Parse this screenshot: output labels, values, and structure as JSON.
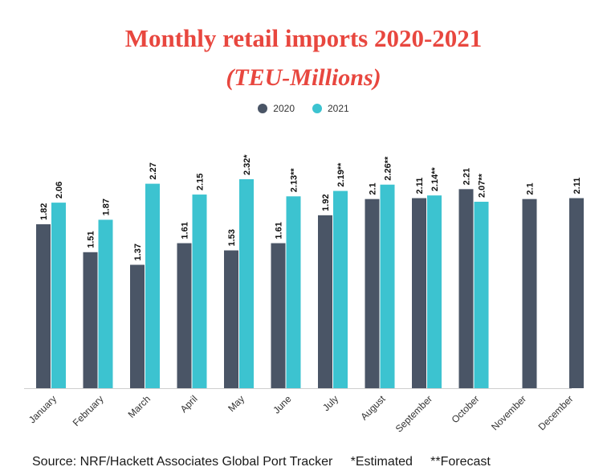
{
  "title": "Monthly retail imports 2020-2021",
  "subtitle": "(TEU-Millions)",
  "source": "Source: NRF/Hackett Associates Global Port Tracker     *Estimated     **Forecast",
  "colors": {
    "s2020": "#4a5566",
    "s2021": "#3cc3d0",
    "title": "#e8473f"
  },
  "chart_data": {
    "type": "bar",
    "title": "Monthly retail imports 2020-2021",
    "subtitle": "(TEU-Millions)",
    "categories": [
      "January",
      "February",
      "March",
      "April",
      "May",
      "June",
      "July",
      "August",
      "September",
      "October",
      "November",
      "December"
    ],
    "series": [
      {
        "name": "2020",
        "values": [
          1.82,
          1.51,
          1.37,
          1.61,
          1.53,
          1.61,
          1.92,
          2.1,
          2.11,
          2.21,
          2.1,
          2.11
        ],
        "labels": [
          "1.82",
          "1.51",
          "1.37",
          "1.61",
          "1.53",
          "1.61",
          "1.92",
          "2.1",
          "2.11",
          "2.21",
          "2.1",
          "2.11"
        ]
      },
      {
        "name": "2021",
        "values": [
          2.06,
          1.87,
          2.27,
          2.15,
          2.32,
          2.13,
          2.19,
          2.26,
          2.14,
          2.07,
          null,
          null
        ],
        "labels": [
          "2.06",
          "1.87",
          "2.27",
          "2.15",
          "2.32*",
          "2.13**",
          "2.19**",
          "2.26**",
          "2.14**",
          "2.07**",
          "",
          ""
        ]
      }
    ],
    "ylim": [
      0,
      2.32
    ],
    "grid": false,
    "legend": "top-center"
  }
}
